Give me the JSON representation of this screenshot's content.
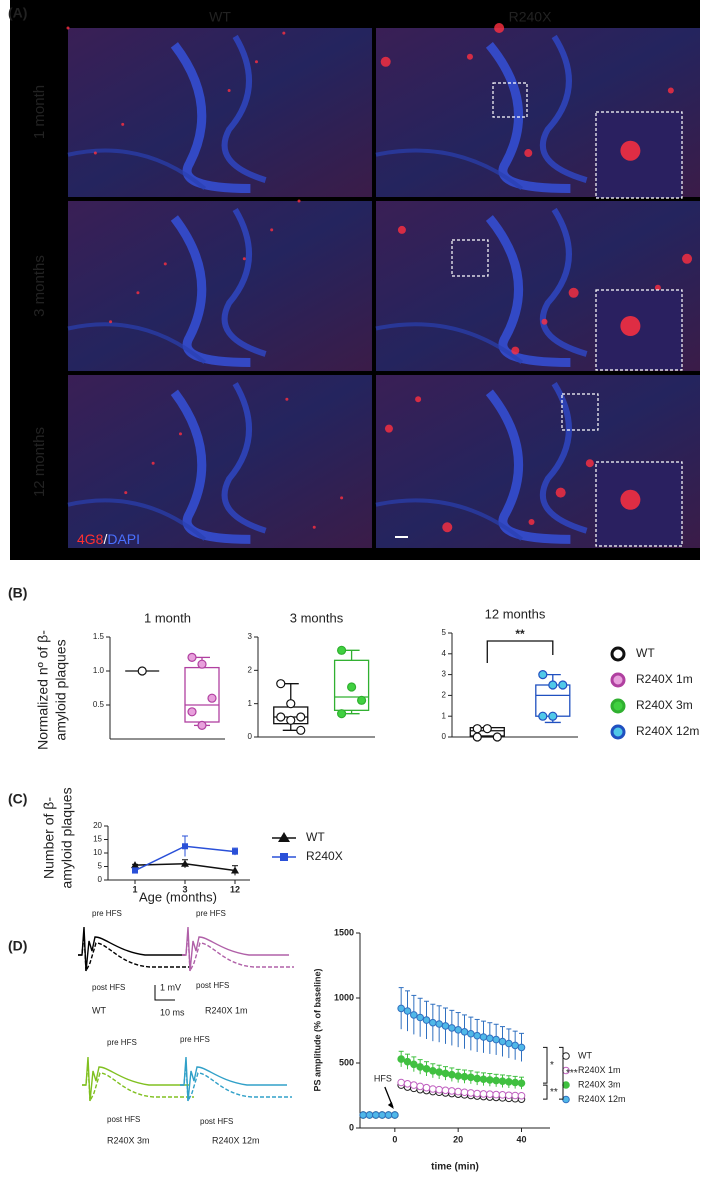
{
  "panel_labels": [
    "(A)",
    "(B)",
    "(C)",
    "(D)"
  ],
  "panel_a": {
    "columns": [
      "WT",
      "R240X"
    ],
    "rows": [
      "1 month",
      "3 months",
      "12 months"
    ],
    "stain": {
      "marker": "4G8",
      "separator": "/",
      "counterstain": "DAPI"
    }
  },
  "panel_b": {
    "ylabel": [
      "Normalized  nº of β-",
      "amyloid plaques"
    ],
    "legend": [
      {
        "name": "WT",
        "color": "#111111",
        "fill": "#ffffff"
      },
      {
        "name": "R240X 1m",
        "color": "#b040a0",
        "fill": "#e8a0dc"
      },
      {
        "name": "R240X 3m",
        "color": "#30b030",
        "fill": "#40d040"
      },
      {
        "name": "R240X 12m",
        "color": "#2050c0",
        "fill": "#50c8e8"
      }
    ]
  },
  "panel_d_traces": {
    "pre": "pre HFS",
    "post": "post HFS",
    "scale_v": "1 mV",
    "scale_t": "10 ms",
    "groups": [
      "WT",
      "R240X 1m",
      "R240X 3m",
      "R240X 12m"
    ]
  },
  "chart_data": [
    {
      "type": "box",
      "title": "1 month",
      "ylim": [
        0,
        1.5
      ],
      "yticks": [
        0.5,
        {
          "value": 1,
          "label": "1.0"
        },
        1.5
      ],
      "series": [
        {
          "color": "#111111",
          "fill": "#ffffff",
          "box": {
            "median": 1.0
          },
          "points": [
            1.0
          ]
        },
        {
          "color": "#b040a0",
          "fill": "#e8a0dc",
          "box": {
            "min": 0.2,
            "q1": 0.25,
            "median": 0.5,
            "q3": 1.05,
            "max": 1.2
          },
          "points": [
            1.2,
            1.1,
            0.6,
            0.4,
            0.2
          ]
        }
      ]
    },
    {
      "type": "box",
      "title": "3 months",
      "ylim": [
        0,
        3
      ],
      "yticks": [
        0,
        1,
        2,
        3
      ],
      "series": [
        {
          "color": "#111111",
          "fill": "#ffffff",
          "box": {
            "min": 0.2,
            "q1": 0.4,
            "median": 0.6,
            "q3": 0.9,
            "max": 1.6
          },
          "points": [
            1.6,
            1.0,
            0.6,
            0.6,
            0.5,
            0.2
          ]
        },
        {
          "color": "#30b030",
          "fill": "#40d040",
          "box": {
            "min": 0.7,
            "q1": 0.8,
            "median": 1.2,
            "q3": 2.3,
            "max": 2.6
          },
          "points": [
            2.6,
            1.5,
            1.1,
            0.7
          ]
        }
      ]
    },
    {
      "type": "box",
      "title": "12 months",
      "ylim": [
        0,
        5
      ],
      "yticks": [
        0,
        1,
        2,
        3,
        4,
        5
      ],
      "annotation": "**",
      "series": [
        {
          "color": "#111111",
          "fill": "#ffffff",
          "box": {
            "min": 0,
            "q1": 0.05,
            "median": 0.3,
            "q3": 0.45,
            "max": 0.45
          },
          "points": [
            0.4,
            0.4,
            0,
            0
          ]
        },
        {
          "color": "#2050c0",
          "fill": "#50c8e8",
          "box": {
            "min": 0.7,
            "q1": 1.0,
            "median": 2.0,
            "q3": 2.5,
            "max": 3.0
          },
          "points": [
            3.0,
            2.5,
            2.5,
            1.0,
            1.0
          ]
        }
      ]
    },
    {
      "type": "line",
      "ylabel": [
        "Number of β-",
        "amyloid plaques"
      ],
      "xlabel": "Age (months)",
      "categories": [
        "1",
        "3",
        "12"
      ],
      "ylim": [
        0,
        20
      ],
      "yticks": [
        0,
        5,
        10,
        15,
        20
      ],
      "series": [
        {
          "name": "WT",
          "color": "#111111",
          "marker": "triangle",
          "values": [
            5.5,
            6,
            3.5
          ],
          "errors": [
            0.3,
            1.5,
            1.8
          ]
        },
        {
          "name": "R240X",
          "color": "#2a50d8",
          "marker": "square",
          "values": [
            3.5,
            12.5,
            10.5
          ],
          "errors": [
            1,
            3.8,
            1.3
          ]
        }
      ]
    },
    {
      "type": "scatter",
      "ylabel": "PS amplitude (% of baseline)",
      "xlabel": "time (min)",
      "annotation": "HFS",
      "significance": [
        "*",
        "**",
        "***"
      ],
      "xlim": [
        -11,
        49
      ],
      "xticks": [
        0,
        20,
        40
      ],
      "ylim": [
        0,
        1500
      ],
      "yticks": [
        0,
        500,
        1000,
        1500
      ],
      "x": [
        -10,
        -8,
        -6,
        -4,
        -2,
        0,
        2,
        4,
        6,
        8,
        10,
        12,
        14,
        16,
        18,
        20,
        22,
        24,
        26,
        28,
        30,
        32,
        34,
        36,
        38,
        40
      ],
      "series": [
        {
          "name": "WT",
          "color": "#222222",
          "fill": "#ffffff",
          "values": [
            100,
            100,
            100,
            100,
            100,
            100,
            330,
            315,
            305,
            295,
            288,
            280,
            275,
            270,
            265,
            260,
            255,
            250,
            246,
            242,
            238,
            235,
            232,
            228,
            225,
            222
          ]
        },
        {
          "name": "R240X 1m",
          "color": "#c060c0",
          "fill": "#ffffff",
          "values": [
            100,
            100,
            100,
            100,
            100,
            100,
            350,
            340,
            330,
            320,
            310,
            300,
            295,
            290,
            285,
            280,
            275,
            270,
            265,
            262,
            260,
            257,
            255,
            252,
            250,
            248
          ]
        },
        {
          "name": "R240X 3m",
          "color": "#40c040",
          "fill": "#40c040",
          "values": [
            100,
            100,
            100,
            100,
            100,
            100,
            530,
            510,
            490,
            470,
            455,
            440,
            430,
            420,
            410,
            400,
            395,
            390,
            380,
            375,
            370,
            365,
            360,
            355,
            350,
            345
          ],
          "errors": [
            5,
            5,
            5,
            5,
            5,
            5,
            60,
            58,
            57,
            56,
            55,
            54,
            53,
            52,
            52,
            51,
            51,
            50,
            50,
            49,
            49,
            48,
            48,
            47,
            47,
            46
          ]
        },
        {
          "name": "R240X 12m",
          "color": "#3070c0",
          "fill": "#50b8e8",
          "values": [
            100,
            100,
            100,
            100,
            100,
            100,
            920,
            900,
            870,
            850,
            830,
            810,
            800,
            785,
            770,
            755,
            740,
            725,
            710,
            700,
            690,
            680,
            665,
            650,
            635,
            620
          ],
          "errors": [
            10,
            10,
            10,
            10,
            10,
            10,
            160,
            155,
            150,
            148,
            145,
            142,
            140,
            138,
            135,
            133,
            130,
            128,
            125,
            122,
            120,
            118,
            115,
            112,
            110,
            108
          ]
        }
      ]
    }
  ]
}
